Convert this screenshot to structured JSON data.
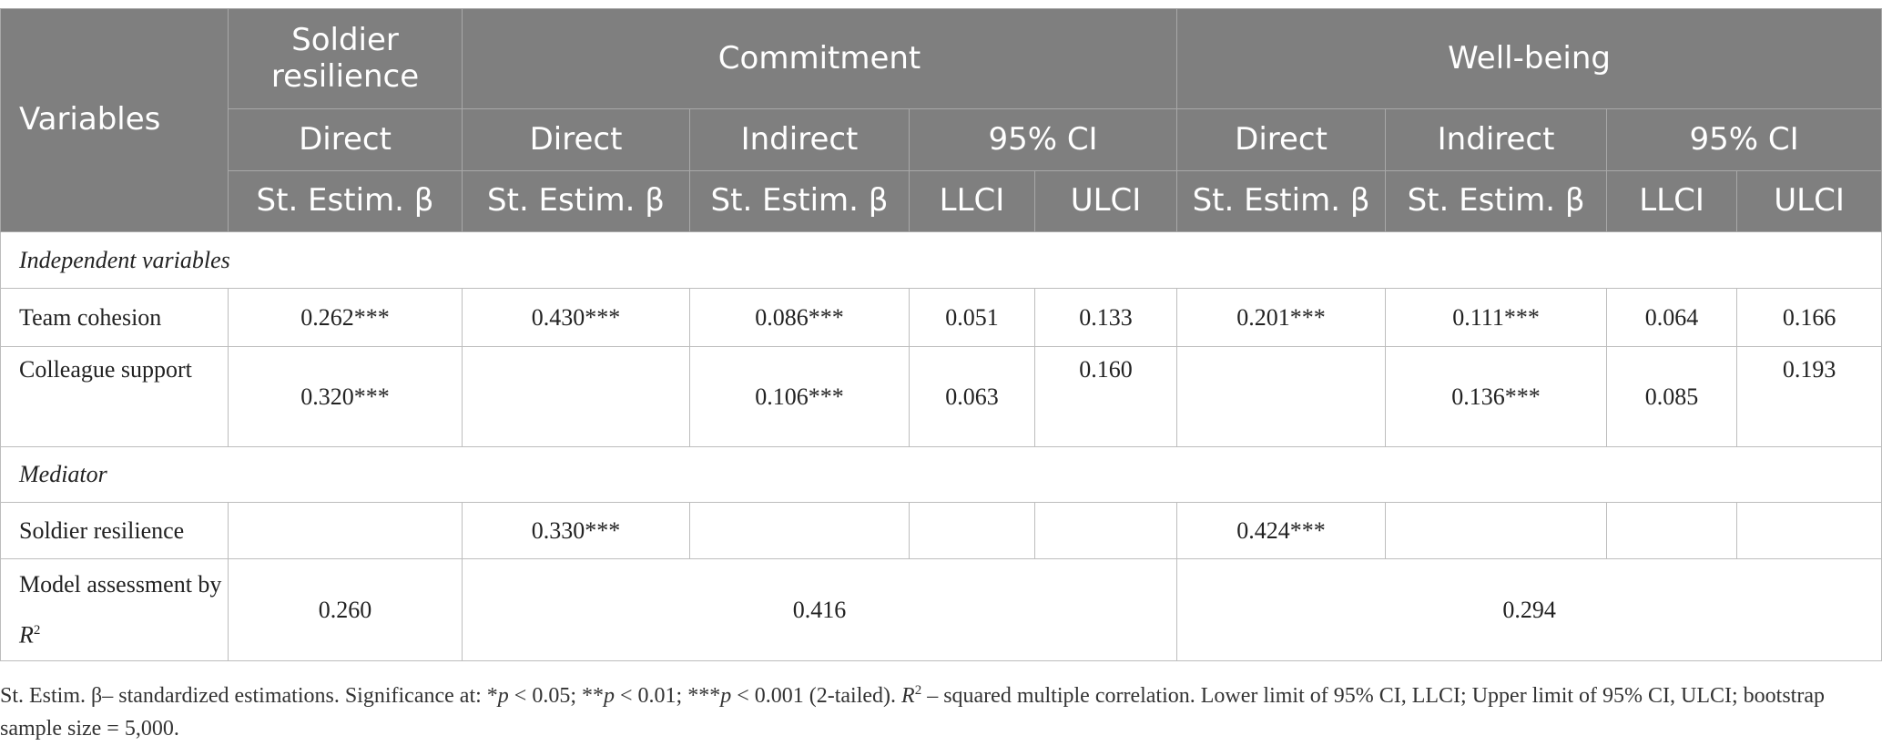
{
  "header": {
    "variables": "Variables",
    "groups": [
      "Soldier resilience",
      "Commitment",
      "Well-being"
    ],
    "effects": [
      "Direct",
      "Direct",
      "Indirect",
      "95% CI",
      "Direct",
      "Indirect",
      "95% CI"
    ],
    "measures": [
      "St. Estim. β",
      "St. Estim. β",
      "St. Estim. β",
      "LLCI",
      "ULCI",
      "St. Estim. β",
      "St. Estim. β",
      "LLCI",
      "ULCI"
    ]
  },
  "sections": [
    "Independent variables",
    "Mediator"
  ],
  "rows": [
    {
      "label": "Team cohesion",
      "cells": [
        "0.262***",
        "0.430***",
        "0.086***",
        "0.051",
        "0.133",
        "0.201***",
        "0.111***",
        "0.064",
        "0.166"
      ]
    },
    {
      "label": "Colleague support",
      "cells": [
        "0.320***",
        null,
        "0.106***",
        "0.063",
        "0.160",
        null,
        "0.136***",
        "0.085",
        "0.193"
      ]
    },
    {
      "label": "Soldier resilience",
      "cells": [
        null,
        "0.330***",
        null,
        null,
        null,
        "0.424***",
        null,
        null,
        null
      ]
    }
  ],
  "model": {
    "label": [
      "Model assessment by ",
      "R",
      "2"
    ],
    "cells": [
      "0.260",
      "0.416",
      "0.294"
    ]
  },
  "footnote": [
    "St. Estim. β– standardized estimations. Significance at: *",
    "p",
    " < 0.05; **",
    "p",
    " < 0.01; ***",
    "p",
    " < 0.001 (2-tailed). ",
    "R",
    "2",
    " – squared multiple correlation. Lower limit of 95% CI, LLCI; Upper limit of 95% CI, ULCI; bootstrap sample size = 5,000."
  ]
}
